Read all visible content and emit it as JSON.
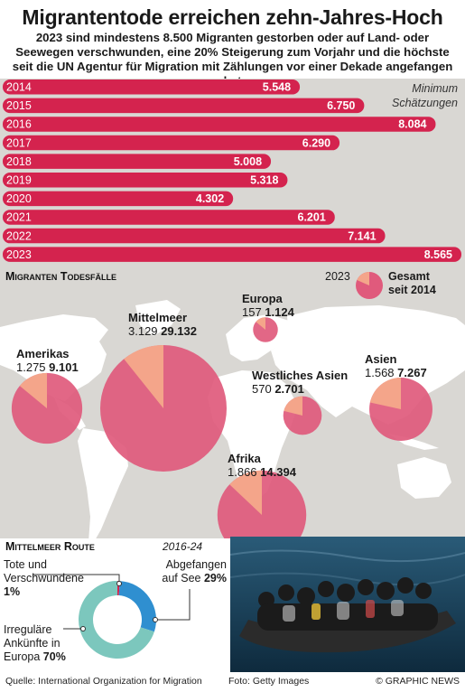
{
  "header": {
    "title": "Migrantentode erreichen zehn-Jahres-Hoch",
    "subtitle": "2023 sind mindestens 8.500 Migranten gestorben oder auf Land- oder Seewegen verschwunden, eine 20% Steigerung zum Vorjahr und die höchste seit die UN Agentur für Migration mit Zählungen vor einer Dekade angefangen hat"
  },
  "bar_chart": {
    "note_line1": "Minimum",
    "note_line2": "Schätzungen"
  },
  "map_section": {
    "label": "Migranten Todesfälle",
    "legend": {
      "year": "2023",
      "total_line1": "Gesamt",
      "total_line2": "seit 2014"
    }
  },
  "mediterranean_route": {
    "label": "Mittelmeer Route",
    "period": "2016-24",
    "dead_label_line1": "Tote und",
    "dead_label_line2": "Verschwundene",
    "dead_pct": "1%",
    "intercepted_label_line1": "Abgefangen",
    "intercepted_label_line2": "auf See",
    "intercepted_pct": "29%",
    "irregular_label_line1": "Irreguläre",
    "irregular_label_line2": "Ankünfte in",
    "irregular_label_line3": "Europa",
    "irregular_pct": "70%"
  },
  "footer": {
    "source": "Quelle: International Organization for Migration",
    "photo": "Foto: Getty Images",
    "credit": "© GRAPHIC NEWS"
  },
  "colors": {
    "bar": "#d4234e",
    "bubble": "#e05a7c",
    "bubble_2023": "#f4a58a",
    "map_land": "#ffffff",
    "map_sea": "#d9d7d3",
    "donut_dead": "#d4234e",
    "donut_intercepted": "#2f8fd0",
    "donut_irregular": "#7cc7bd"
  },
  "chart_data": [
    {
      "type": "bar",
      "orientation": "horizontal",
      "categories": [
        "2014",
        "2015",
        "2016",
        "2017",
        "2018",
        "2019",
        "2020",
        "2021",
        "2022",
        "2023"
      ],
      "values": [
        5548,
        6750,
        8084,
        6290,
        5008,
        5318,
        4302,
        6201,
        7141,
        8565
      ],
      "value_labels": [
        "5.548",
        "6.750",
        "8.084",
        "6.290",
        "5.008",
        "5.318",
        "4.302",
        "6.201",
        "7.141",
        "8.565"
      ]
    },
    {
      "type": "bubble",
      "regions": [
        {
          "name": "Mittelmeer",
          "value_2023": 3129,
          "label_2023": "3.129",
          "total": 29132,
          "label_total": "29.132"
        },
        {
          "name": "Europa",
          "value_2023": 157,
          "label_2023": "157",
          "total": 1124,
          "label_total": "1.124"
        },
        {
          "name": "Amerikas",
          "value_2023": 1275,
          "label_2023": "1.275",
          "total": 9101,
          "label_total": "9.101"
        },
        {
          "name": "Westliches Asien",
          "value_2023": 570,
          "label_2023": "570",
          "total": 2701,
          "label_total": "2.701"
        },
        {
          "name": "Asien",
          "value_2023": 1568,
          "label_2023": "1.568",
          "total": 7267,
          "label_total": "7.267"
        },
        {
          "name": "Afrika",
          "value_2023": 1866,
          "label_2023": "1.866",
          "total": 14394,
          "label_total": "14.394"
        }
      ]
    },
    {
      "type": "pie",
      "variant": "donut",
      "slices": [
        {
          "label": "Tote und Verschwundene",
          "value": 1
        },
        {
          "label": "Abgefangen auf See",
          "value": 29
        },
        {
          "label": "Irreguläre Ankünfte in Europa",
          "value": 70
        }
      ]
    }
  ]
}
